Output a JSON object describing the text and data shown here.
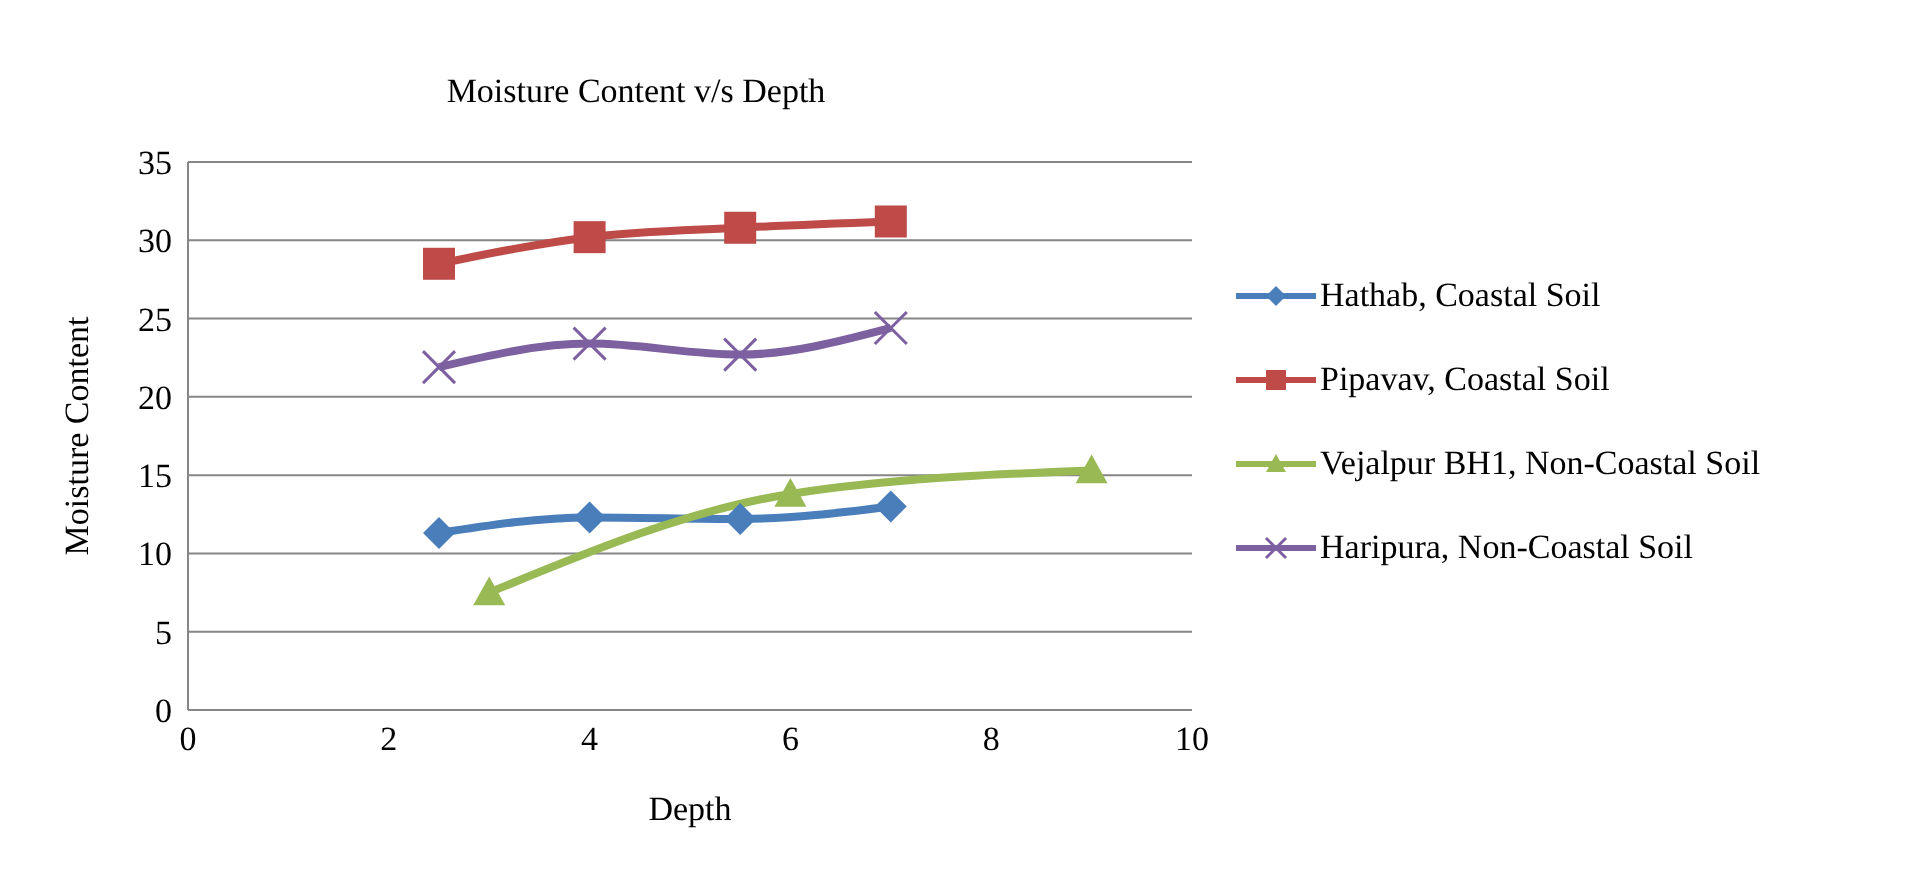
{
  "chart_data": {
    "type": "line",
    "title": "Moisture Content v/s Depth",
    "xlabel": "Depth",
    "ylabel": "Moisture Content",
    "xlim": [
      0,
      10
    ],
    "xticks": [
      0,
      2,
      4,
      6,
      8,
      10
    ],
    "ylim": [
      0,
      35
    ],
    "yticks": [
      0,
      5,
      10,
      15,
      20,
      25,
      30,
      35
    ],
    "grid": "y",
    "legend": "right",
    "line_style": "solid",
    "series": [
      {
        "name": "Hathab, Coastal Soil",
        "color": "#4a7ebb",
        "marker": "diamond",
        "x": [
          2.5,
          4,
          5.5,
          7
        ],
        "values": [
          11.3,
          12.3,
          12.2,
          13.0
        ]
      },
      {
        "name": "Pipavav, Coastal Soil",
        "color": "#be4b48",
        "marker": "square",
        "x": [
          2.5,
          4,
          5.5,
          7
        ],
        "values": [
          28.5,
          30.2,
          30.8,
          31.2
        ]
      },
      {
        "name": "Vejalpur BH1, Non-Coastal Soil",
        "color": "#98b954",
        "marker": "triangle",
        "x": [
          3,
          6,
          9
        ],
        "values": [
          7.5,
          13.8,
          15.3
        ]
      },
      {
        "name": "Haripura, Non-Coastal Soil",
        "color": "#7d60a0",
        "marker": "cross",
        "x": [
          2.5,
          4,
          5.5,
          7
        ],
        "values": [
          21.9,
          23.4,
          22.7,
          24.4
        ]
      }
    ]
  }
}
